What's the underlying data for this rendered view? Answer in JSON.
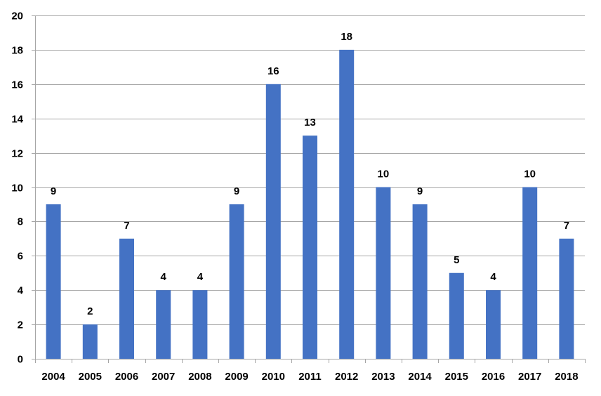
{
  "chart_data": {
    "type": "bar",
    "categories": [
      "2004",
      "2005",
      "2006",
      "2007",
      "2008",
      "2009",
      "2010",
      "2011",
      "2012",
      "2013",
      "2014",
      "2015",
      "2016",
      "2017",
      "2018"
    ],
    "values": [
      9,
      2,
      7,
      4,
      4,
      9,
      16,
      13,
      18,
      10,
      9,
      5,
      4,
      10,
      7
    ],
    "title": "",
    "xlabel": "",
    "ylabel": "",
    "ylim": [
      0,
      20
    ],
    "yticks": [
      0,
      2,
      4,
      6,
      8,
      10,
      12,
      14,
      16,
      18,
      20
    ],
    "grid": true,
    "data_labels": true,
    "legend": "none",
    "colors": {
      "bar": "#4472C4",
      "grid": "#A6A6A6",
      "axis": "#A6A6A6",
      "text": "#000000"
    }
  }
}
